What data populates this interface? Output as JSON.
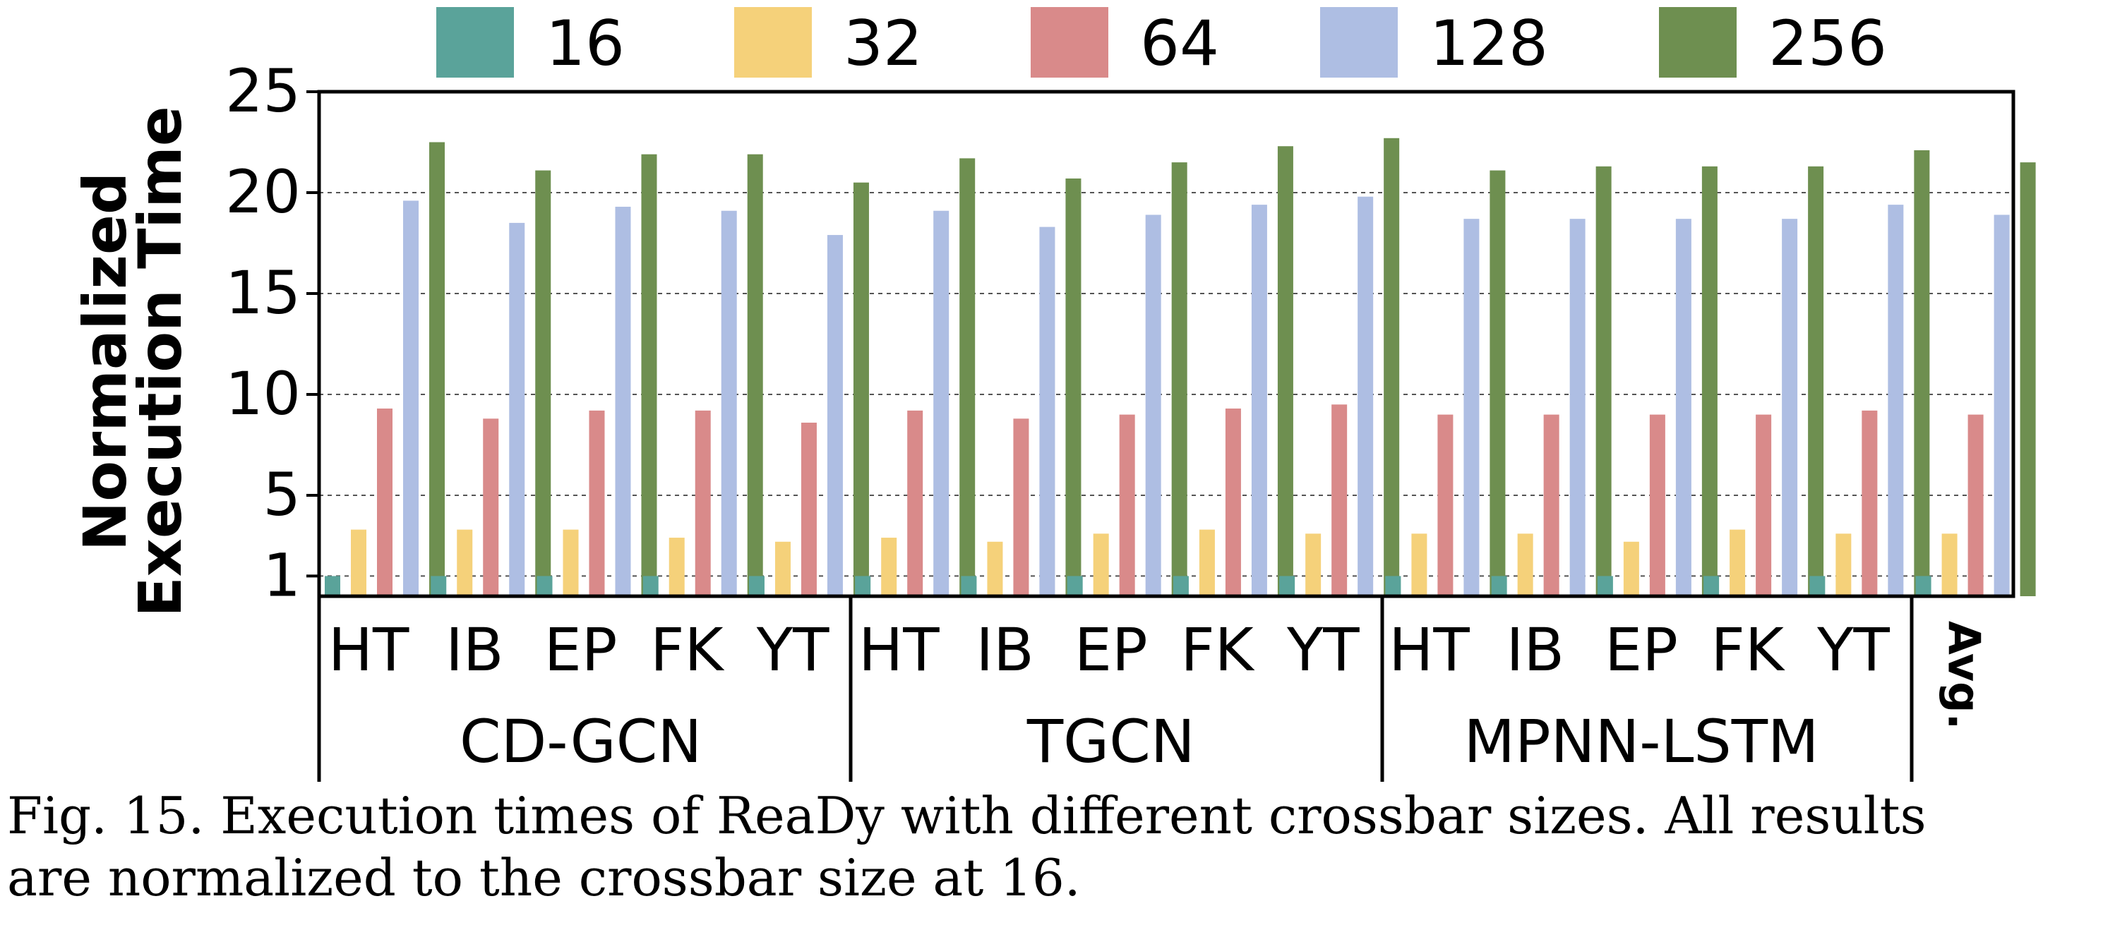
{
  "chart_data": {
    "type": "bar",
    "ylabel": [
      "Normalized",
      "Execution Time"
    ],
    "xlabel": "",
    "ylim": [
      0,
      25
    ],
    "yticks": [
      1,
      5,
      10,
      15,
      20,
      25
    ],
    "grid": "horizontal dotted",
    "legend_position": "top",
    "groups": [
      {
        "name": "CD-GCN",
        "categories": [
          "HT",
          "IB",
          "EP",
          "FK",
          "YT"
        ]
      },
      {
        "name": "TGCN",
        "categories": [
          "HT",
          "IB",
          "EP",
          "FK",
          "YT"
        ]
      },
      {
        "name": "MPNN-LSTM",
        "categories": [
          "HT",
          "IB",
          "EP",
          "FK",
          "YT"
        ]
      },
      {
        "name": "",
        "categories": [
          "Avg."
        ]
      }
    ],
    "series": [
      {
        "name": "16",
        "color": "#5aa39a",
        "values": [
          1,
          1,
          1,
          1,
          1,
          1,
          1,
          1,
          1,
          1,
          1,
          1,
          1,
          1,
          1,
          1
        ]
      },
      {
        "name": "32",
        "color": "#f5d17a",
        "values": [
          3.3,
          3.3,
          3.3,
          2.9,
          2.7,
          2.9,
          2.7,
          3.1,
          3.3,
          3.1,
          3.1,
          3.1,
          2.7,
          3.3,
          3.1,
          3.1
        ]
      },
      {
        "name": "64",
        "color": "#d98a8a",
        "values": [
          9.3,
          8.8,
          9.2,
          9.2,
          8.6,
          9.2,
          8.8,
          9.0,
          9.3,
          9.5,
          9.0,
          9.0,
          9.0,
          9.0,
          9.2,
          9.0
        ]
      },
      {
        "name": "128",
        "color": "#aebee3",
        "values": [
          19.6,
          18.5,
          19.3,
          19.1,
          17.9,
          19.1,
          18.3,
          18.9,
          19.4,
          19.8,
          18.7,
          18.7,
          18.7,
          18.7,
          19.4,
          18.9
        ]
      },
      {
        "name": "256",
        "color": "#6e8f50",
        "values": [
          22.5,
          21.1,
          21.9,
          21.9,
          20.5,
          21.7,
          20.7,
          21.5,
          22.3,
          22.7,
          21.1,
          21.3,
          21.3,
          21.3,
          22.1,
          21.5
        ]
      }
    ]
  },
  "caption": {
    "line1": "Fig. 15.  Execution times of ReaDy with different crossbar sizes. All results",
    "line2": "are normalized to the crossbar size at 16."
  }
}
